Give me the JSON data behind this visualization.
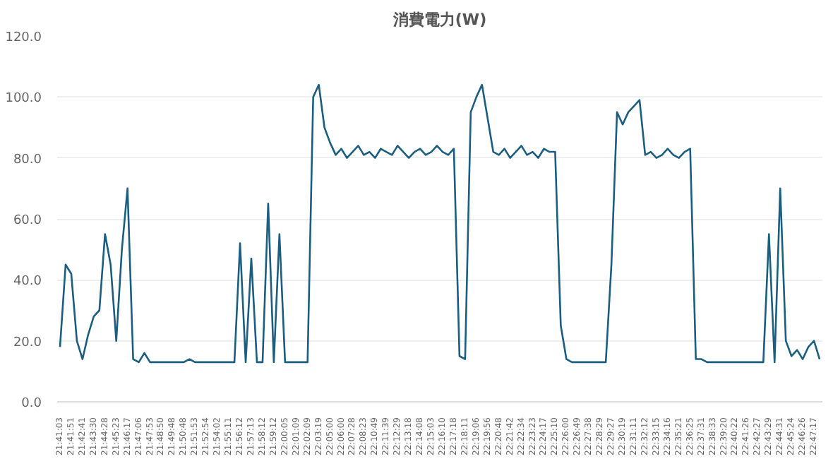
{
  "chart_data": {
    "type": "line",
    "title": "消費電力(W)",
    "categories": [
      "21:41:03",
      null,
      "21:41:51",
      null,
      "21:42:41",
      null,
      "21:43:30",
      null,
      "21:44:28",
      null,
      "21:45:23",
      null,
      "21:46:17",
      null,
      "21:47:06",
      null,
      "21:47:53",
      null,
      "21:48:50",
      null,
      "21:49:48",
      null,
      "21:50:48",
      null,
      "21:51:53",
      null,
      "21:52:54",
      null,
      "21:54:02",
      null,
      "21:55:11",
      null,
      "21:56:12",
      null,
      "21:57:13",
      null,
      "21:58:12",
      null,
      "21:59:12",
      null,
      "22:00:05",
      null,
      "22:01:09",
      null,
      "22:02:09",
      null,
      "22:03:19",
      null,
      "22:05:00",
      null,
      "22:06:00",
      null,
      "22:07:28",
      null,
      "22:08:23",
      null,
      "22:10:49",
      null,
      "22:11:39",
      null,
      "22:12:29",
      null,
      "22:13:18",
      null,
      "22:14:08",
      null,
      "22:15:03",
      null,
      "22:16:10",
      null,
      "22:17:18",
      null,
      "22:18:11",
      null,
      "22:19:06",
      null,
      "22:19:56",
      null,
      "22:20:48",
      null,
      "22:21:42",
      null,
      "22:22:34",
      null,
      "22:23:23",
      null,
      "22:24:17",
      null,
      "22:25:10",
      null,
      "22:26:00",
      null,
      "22:26:49",
      null,
      "22:27:38",
      null,
      "22:28:29",
      null,
      "22:29:27",
      null,
      "22:30:19",
      null,
      "22:31:11",
      null,
      "22:32:12",
      null,
      "22:33:15",
      null,
      "22:34:16",
      null,
      "22:35:21",
      null,
      "22:36:25",
      null,
      "22:37:31",
      null,
      "22:38:33",
      null,
      "22:39:20",
      null,
      "22:40:22",
      null,
      "22:41:26",
      null,
      "22:42:27",
      null,
      "22:43:29",
      null,
      "22:44:31",
      null,
      "22:45:24",
      null,
      "22:46:26",
      null,
      "22:47:17",
      null
    ],
    "series": [
      {
        "color": "#1b5e80",
        "values": [
          18,
          45,
          42,
          20,
          14,
          22,
          28,
          30,
          55,
          45,
          20,
          50,
          70,
          14,
          13,
          16,
          13,
          13,
          13,
          13,
          13,
          13,
          13,
          14,
          13,
          13,
          13,
          13,
          13,
          13,
          13,
          13,
          52,
          13,
          47,
          13,
          13,
          65,
          13,
          55,
          13,
          13,
          13,
          13,
          13,
          100,
          104,
          90,
          85,
          81,
          83,
          80,
          82,
          84,
          81,
          82,
          80,
          83,
          82,
          81,
          84,
          82,
          80,
          82,
          83,
          81,
          82,
          84,
          82,
          81,
          83,
          15,
          14,
          95,
          100,
          104,
          93,
          82,
          81,
          83,
          80,
          82,
          84,
          81,
          82,
          80,
          83,
          82,
          82,
          25,
          14,
          13,
          13,
          13,
          13,
          13,
          13,
          13,
          45,
          95,
          91,
          95,
          97,
          99,
          81,
          82,
          80,
          81,
          83,
          81,
          80,
          82,
          83,
          14,
          14,
          13,
          13,
          13,
          13,
          13,
          13,
          13,
          13,
          13,
          13,
          13,
          55,
          13,
          70,
          20,
          15,
          17,
          14,
          18,
          20,
          14
        ]
      }
    ],
    "ylim": [
      0,
      120
    ],
    "yticks": [
      {
        "value": 0,
        "label": "0.0"
      },
      {
        "value": 20,
        "label": "20.0"
      },
      {
        "value": 40,
        "label": "40.0"
      },
      {
        "value": 60,
        "label": "60.0"
      },
      {
        "value": 80,
        "label": "80.0"
      },
      {
        "value": 100,
        "label": "100.0"
      },
      {
        "value": 120,
        "label": "120.0"
      }
    ],
    "grid": "y",
    "marker": "none",
    "line_style": "solid"
  }
}
